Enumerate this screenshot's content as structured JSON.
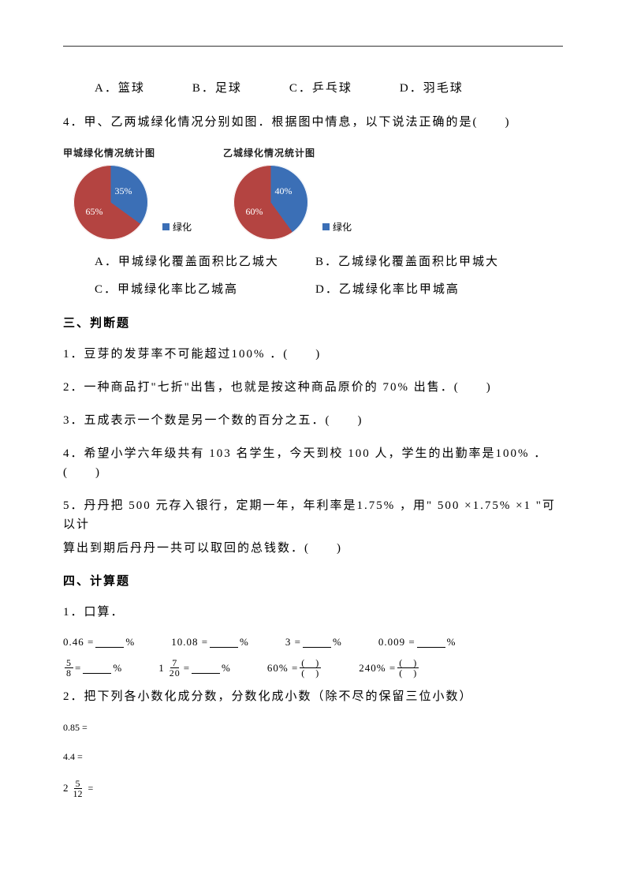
{
  "q_top_options": {
    "A": "A．篮球",
    "B": "B．足球",
    "C": "C．乒乓球",
    "D": "D．羽毛球"
  },
  "q4": {
    "stem": "4．甲、乙两城绿化情况分别如图．根据图中情息，以下说法正确的是(　　)",
    "chart1": {
      "title": "甲城绿化情况统计图",
      "green_pct": 35,
      "other_pct": 65,
      "green_label": "35%",
      "other_label": "65%",
      "green_color": "#3b6fb6",
      "other_color": "#b44441",
      "bg": "#ffffff",
      "title_fontsize": 12
    },
    "chart2": {
      "title": "乙城绿化情况统计图",
      "green_pct": 40,
      "other_pct": 60,
      "green_label": "40%",
      "other_label": "60%",
      "green_color": "#3b6fb6",
      "other_color": "#b44441",
      "bg": "#ffffff",
      "title_fontsize": 12
    },
    "legend": {
      "square_color": "#3b6fb6",
      "text": "绿化"
    },
    "options": {
      "A": "A．甲城绿化覆盖面积比乙城大",
      "B": "B．乙城绿化覆盖面积比甲城大",
      "C": "C．甲城绿化率比乙城高",
      "D": "D．乙城绿化率比甲城高"
    }
  },
  "section3": {
    "head": "三、判断题",
    "q1": "1．豆芽的发芽率不可能超过100% ．(　　)",
    "q2": "2．一种商品打\"七折\"出售，也就是按这种商品原价的 70% 出售．(　　)",
    "q3": "3．五成表示一个数是另一个数的百分之五．(　　)",
    "q4": "4．希望小学六年级共有 103 名学生，今天到校 100 人，学生的出勤率是100% ．(　　)",
    "q5a": "5．丹丹把 500 元存入银行，定期一年，年利率是1.75% ，用\" 500 ×1.75% ×1 \"可以计",
    "q5b": "算出到期后丹丹一共可以取回的总钱数．(　　)"
  },
  "section4": {
    "head": "四、计算题",
    "sub1": "1．口算．",
    "row1": {
      "a": "0.46 =",
      "b": "10.08 =",
      "c": "3 =",
      "d": "0.009 =",
      "pct": "%"
    },
    "row2": {
      "f1_num": "5",
      "f1_den": "8",
      "f2_whole": "1",
      "f2_num": "7",
      "f2_den": "20",
      "eq": "=",
      "pct": "%",
      "c_label": "60% =",
      "d_label": "240% =",
      "paren_top": "(　)",
      "paren_bot": "(　)"
    },
    "sub2": "2．把下列各小数化成分数，分数化成小数（除不尽的保留三位小数）",
    "conv": {
      "a": "0.85 =",
      "b": "4.4 =",
      "c_whole": "2",
      "c_num": "5",
      "c_den": "12",
      "c_eq": "="
    }
  }
}
